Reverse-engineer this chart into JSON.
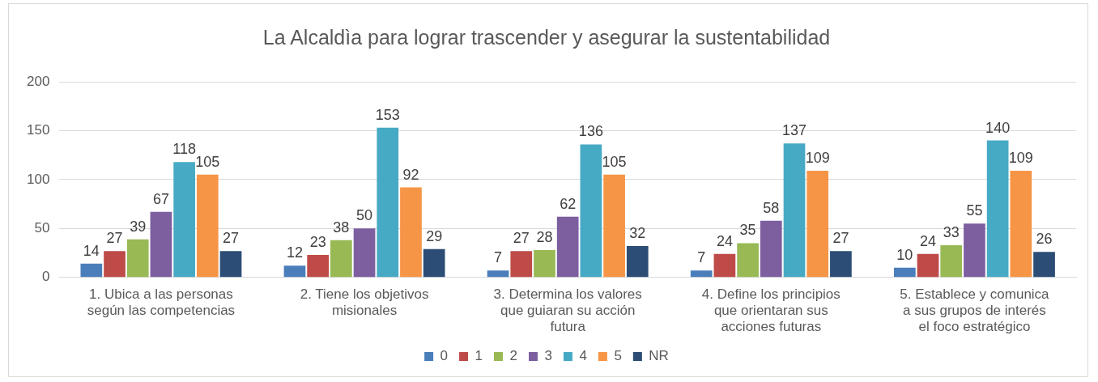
{
  "chart_data": {
    "type": "bar",
    "title": "La Alcaldìa para lograr trascender y asegurar la sustentabilidad",
    "categories": [
      "1. Ubica a las personas según las competencias",
      "2. Tiene los objetivos misionales",
      "3. Determina los valores que guiaran su acción futura",
      "4. Define los principios que orientaran sus acciones futuras",
      "5. Establece y comunica a sus grupos de interés el foco estratégico"
    ],
    "series": [
      {
        "name": "0",
        "color": "#4a7ebb",
        "values": [
          14,
          12,
          7,
          7,
          10
        ]
      },
      {
        "name": "1",
        "color": "#be4b48",
        "values": [
          27,
          23,
          27,
          24,
          24
        ]
      },
      {
        "name": "2",
        "color": "#98b954",
        "values": [
          39,
          38,
          28,
          35,
          33
        ]
      },
      {
        "name": "3",
        "color": "#7d5fa0",
        "values": [
          67,
          50,
          62,
          58,
          55
        ]
      },
      {
        "name": "4",
        "color": "#46aac5",
        "values": [
          118,
          153,
          136,
          137,
          140
        ]
      },
      {
        "name": "5",
        "color": "#f69546",
        "values": [
          105,
          92,
          105,
          109,
          109
        ]
      },
      {
        "name": "NR",
        "color": "#2c4d75",
        "values": [
          27,
          29,
          32,
          27,
          26
        ]
      }
    ],
    "ylim": [
      0,
      200
    ],
    "yticks": [
      0,
      50,
      100,
      150,
      200
    ],
    "grid": "y",
    "legend": "bottom",
    "data_labels": true
  }
}
